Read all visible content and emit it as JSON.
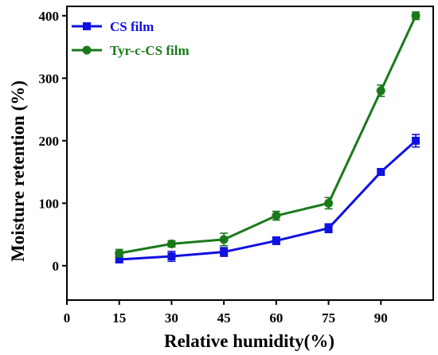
{
  "chart_data": {
    "type": "line",
    "xlabel": "Relative humidity(%)",
    "ylabel": "Moisture retention (%)",
    "x_ticks": [
      "0",
      "15",
      "30",
      "45",
      "60",
      "75",
      "90"
    ],
    "y_ticks": [
      "0",
      "100",
      "200",
      "300",
      "400"
    ],
    "xlim": [
      0,
      105
    ],
    "ylim": [
      -55,
      415
    ],
    "legend_position": "top-left",
    "grid": false,
    "series": [
      {
        "name": "CS film",
        "color": "#1010e0",
        "marker": "square",
        "x": [
          15,
          30,
          45,
          60,
          75,
          90,
          100
        ],
        "y": [
          10,
          15,
          22,
          40,
          60,
          150,
          200
        ],
        "error": [
          5,
          8,
          7,
          6,
          7,
          5,
          10
        ]
      },
      {
        "name": "Tyr-c-CS film",
        "color": "#1a7a1a",
        "marker": "circle",
        "x": [
          15,
          30,
          45,
          60,
          75,
          90,
          100
        ],
        "y": [
          20,
          35,
          42,
          80,
          100,
          280,
          400
        ],
        "error": [
          6,
          5,
          10,
          7,
          9,
          9,
          6
        ]
      }
    ]
  }
}
